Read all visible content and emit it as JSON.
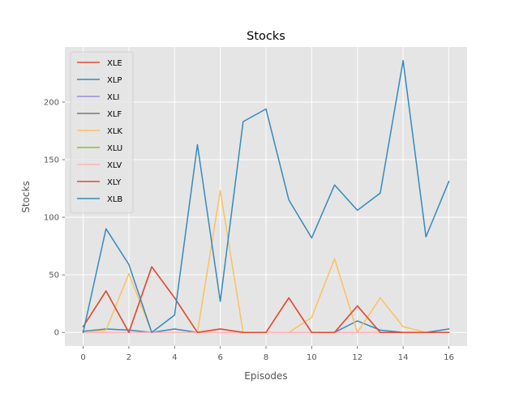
{
  "chart_data": {
    "type": "line",
    "title": "Stocks",
    "xlabel": "Episodes",
    "ylabel": "Stocks",
    "xlim": [
      -0.8,
      16.8
    ],
    "ylim": [
      -11.8,
      247.8
    ],
    "x_ticks": [
      0,
      2,
      4,
      6,
      8,
      10,
      12,
      14,
      16
    ],
    "y_ticks": [
      0,
      50,
      100,
      150,
      200
    ],
    "grid": true,
    "legend_position": "upper-left",
    "x": [
      0,
      1,
      2,
      3,
      4,
      5,
      6,
      7,
      8,
      9,
      10,
      11,
      12,
      13,
      14,
      15,
      16
    ],
    "series": [
      {
        "name": "XLE",
        "color": "#E24A33",
        "values": [
          5,
          36,
          0,
          57,
          30,
          0,
          3,
          0,
          0,
          30,
          0,
          0,
          23,
          0,
          0,
          0,
          0
        ]
      },
      {
        "name": "XLP",
        "color": "#348ABD",
        "values": [
          1,
          3,
          2,
          0,
          3,
          0,
          0,
          0,
          0,
          0,
          0,
          0,
          10,
          2,
          0,
          0,
          3
        ]
      },
      {
        "name": "XLI",
        "color": "#988ED5",
        "values": [
          0,
          0,
          0,
          0,
          0,
          0,
          0,
          0,
          0,
          0,
          0,
          0,
          0,
          0,
          0,
          0,
          0
        ]
      },
      {
        "name": "XLF",
        "color": "#777777",
        "values": [
          0,
          0,
          0,
          0,
          0,
          0,
          0,
          0,
          0,
          0,
          0,
          0,
          0,
          0,
          0,
          0,
          0
        ]
      },
      {
        "name": "XLK",
        "color": "#FBC15E",
        "values": [
          0,
          2,
          51,
          0,
          0,
          0,
          123,
          0,
          0,
          0,
          13,
          64,
          0,
          30,
          5,
          0,
          0
        ]
      },
      {
        "name": "XLU",
        "color": "#8EBA42",
        "values": [
          0,
          0,
          0,
          0,
          0,
          0,
          0,
          0,
          0,
          0,
          0,
          0,
          0,
          0,
          0,
          0,
          0
        ]
      },
      {
        "name": "XLV",
        "color": "#FFB5B8",
        "values": [
          0,
          0,
          0,
          0,
          0,
          0,
          0,
          0,
          0,
          0,
          0,
          0,
          0,
          0,
          0,
          0,
          0
        ]
      },
      {
        "name": "XLY",
        "color": "#E24A33",
        "values": [
          5,
          36,
          0,
          57,
          30,
          0,
          3,
          0,
          0,
          30,
          0,
          0,
          23,
          0,
          0,
          0,
          0
        ]
      },
      {
        "name": "XLB",
        "color": "#348ABD",
        "values": [
          0,
          90,
          59,
          0,
          15,
          163,
          27,
          183,
          194,
          115,
          82,
          128,
          106,
          121,
          236,
          83,
          131
        ]
      }
    ]
  }
}
